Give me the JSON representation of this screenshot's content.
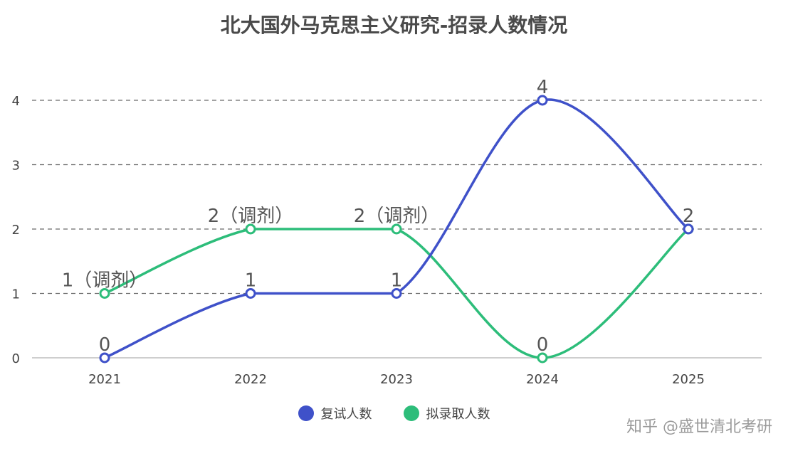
{
  "chart_data": {
    "type": "line",
    "title": "北大国外马克思主义研究-招录人数情况",
    "categories": [
      "2021",
      "2022",
      "2023",
      "2024",
      "2025"
    ],
    "yticks": [
      "0",
      "1",
      "2",
      "3",
      "4"
    ],
    "ylim": [
      0,
      4
    ],
    "grid": true,
    "legend_position": "bottom",
    "series": [
      {
        "name": "复试人数",
        "color": "#3f51c9",
        "values": [
          0,
          1,
          1,
          4,
          2
        ],
        "labels": [
          "0",
          "1",
          "1",
          "4",
          "2"
        ]
      },
      {
        "name": "拟录取人数",
        "color": "#2dbd7a",
        "values": [
          1,
          2,
          2,
          0,
          2
        ],
        "labels": [
          "1（调剂）",
          "2（调剂）",
          "2（调剂）",
          "0",
          ""
        ]
      }
    ]
  },
  "watermark": "知乎 @盛世清北考研"
}
